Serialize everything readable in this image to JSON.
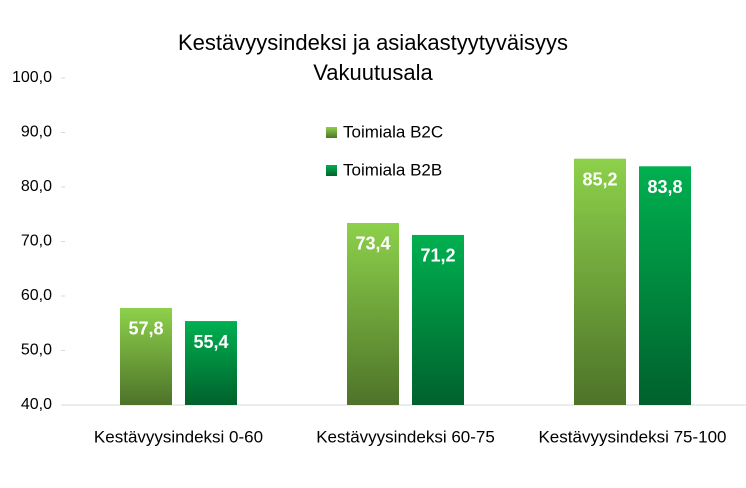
{
  "chart_data": {
    "type": "bar",
    "title": "Kestävyysindeksi ja asiakastyytyväisyys",
    "subtitle": "Vakuutusala",
    "categories": [
      "Kestävyysindeksi 0-60",
      "Kestävyysindeksi 60-75",
      "Kestävyysindeksi 75-100"
    ],
    "series": [
      {
        "name": "Toimiala B2C",
        "color": "#8dd14b",
        "values": [
          57.8,
          73.4,
          85.2
        ],
        "value_labels": [
          "57,8",
          "73,4",
          "85,2"
        ]
      },
      {
        "name": "Toimiala B2B",
        "color": "#00b050",
        "values": [
          55.4,
          71.2,
          83.8
        ],
        "value_labels": [
          "55,4",
          "71,2",
          "83,8"
        ]
      }
    ],
    "ylim": [
      40,
      100
    ],
    "yticks": [
      {
        "value": 40,
        "label": "40,0"
      },
      {
        "value": 50,
        "label": "50,0"
      },
      {
        "value": 60,
        "label": "60,0"
      },
      {
        "value": 70,
        "label": "70,0"
      },
      {
        "value": 80,
        "label": "80,0"
      },
      {
        "value": 90,
        "label": "90,0"
      },
      {
        "value": 100,
        "label": "100,0"
      }
    ],
    "legend": "top-center"
  }
}
